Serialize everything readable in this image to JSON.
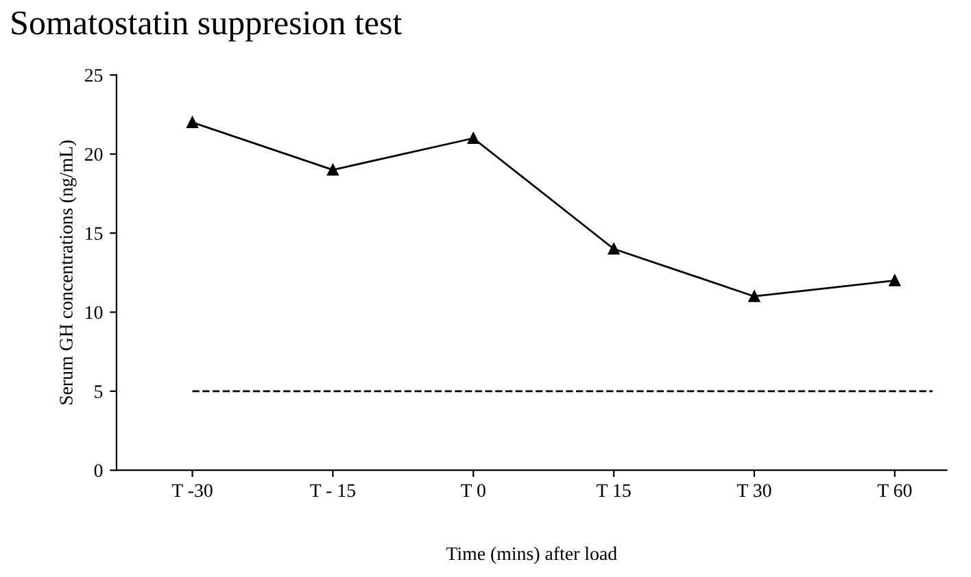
{
  "chart_data": {
    "type": "line",
    "title": "Somatostatin suppresion test",
    "xlabel": "Time (mins) after load",
    "ylabel": "Serum GH concentrations (ng/mL)",
    "categories": [
      "T -30",
      "T - 15",
      "T 0",
      "T 15",
      "T 30",
      "T 60"
    ],
    "series": [
      {
        "color": "#000000",
        "values": [
          22,
          19,
          21,
          14,
          11,
          12
        ]
      }
    ],
    "marker": "triangle",
    "line_style": "solid",
    "ylim": [
      0,
      25
    ],
    "yticks": [
      0,
      5,
      10,
      15,
      20,
      25
    ],
    "grid": false,
    "legend": false,
    "ref_lines": [
      {
        "axis": "y",
        "value": 5,
        "color": "#000000",
        "line_style": "dashed"
      }
    ]
  }
}
